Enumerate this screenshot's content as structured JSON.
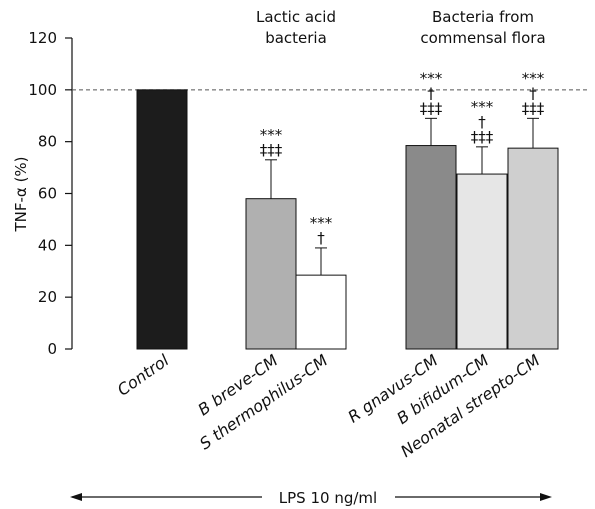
{
  "chart_data": {
    "type": "bar",
    "ylabel": "TNF-α (%)",
    "xlabel": "LPS 10 ng/ml",
    "ylim": [
      0,
      120
    ],
    "yticks": [
      "0",
      "20",
      "40",
      "60",
      "80",
      "100",
      "120"
    ],
    "reference_line": 100,
    "group_labels": [
      {
        "lines": [
          "Lactic acid",
          "bacteria"
        ]
      },
      {
        "lines": [
          "Bacteria from",
          "commensal flora"
        ]
      }
    ],
    "categories": [
      "Control",
      "B breve-CM",
      "S thermophilus-CM",
      "R gnavus-CM",
      "B bifidum-CM",
      "Neonatal strepto-CM"
    ],
    "values": [
      100,
      58,
      28.5,
      78.5,
      67.5,
      77.5
    ],
    "error_upper": [
      100,
      73,
      39,
      89,
      78,
      89
    ],
    "significance": [
      [],
      [
        "***",
        "‡‡‡"
      ],
      [
        "***",
        "†"
      ],
      [
        "***",
        "†",
        "‡‡‡"
      ],
      [
        "***",
        "†",
        "‡‡‡"
      ],
      [
        "***",
        "†",
        "‡‡‡"
      ]
    ],
    "colors": [
      "#1c1c1c",
      "#b0b0b0",
      "#ffffff",
      "#8a8a8a",
      "#e6e6e6",
      "#cfcfcf"
    ]
  }
}
